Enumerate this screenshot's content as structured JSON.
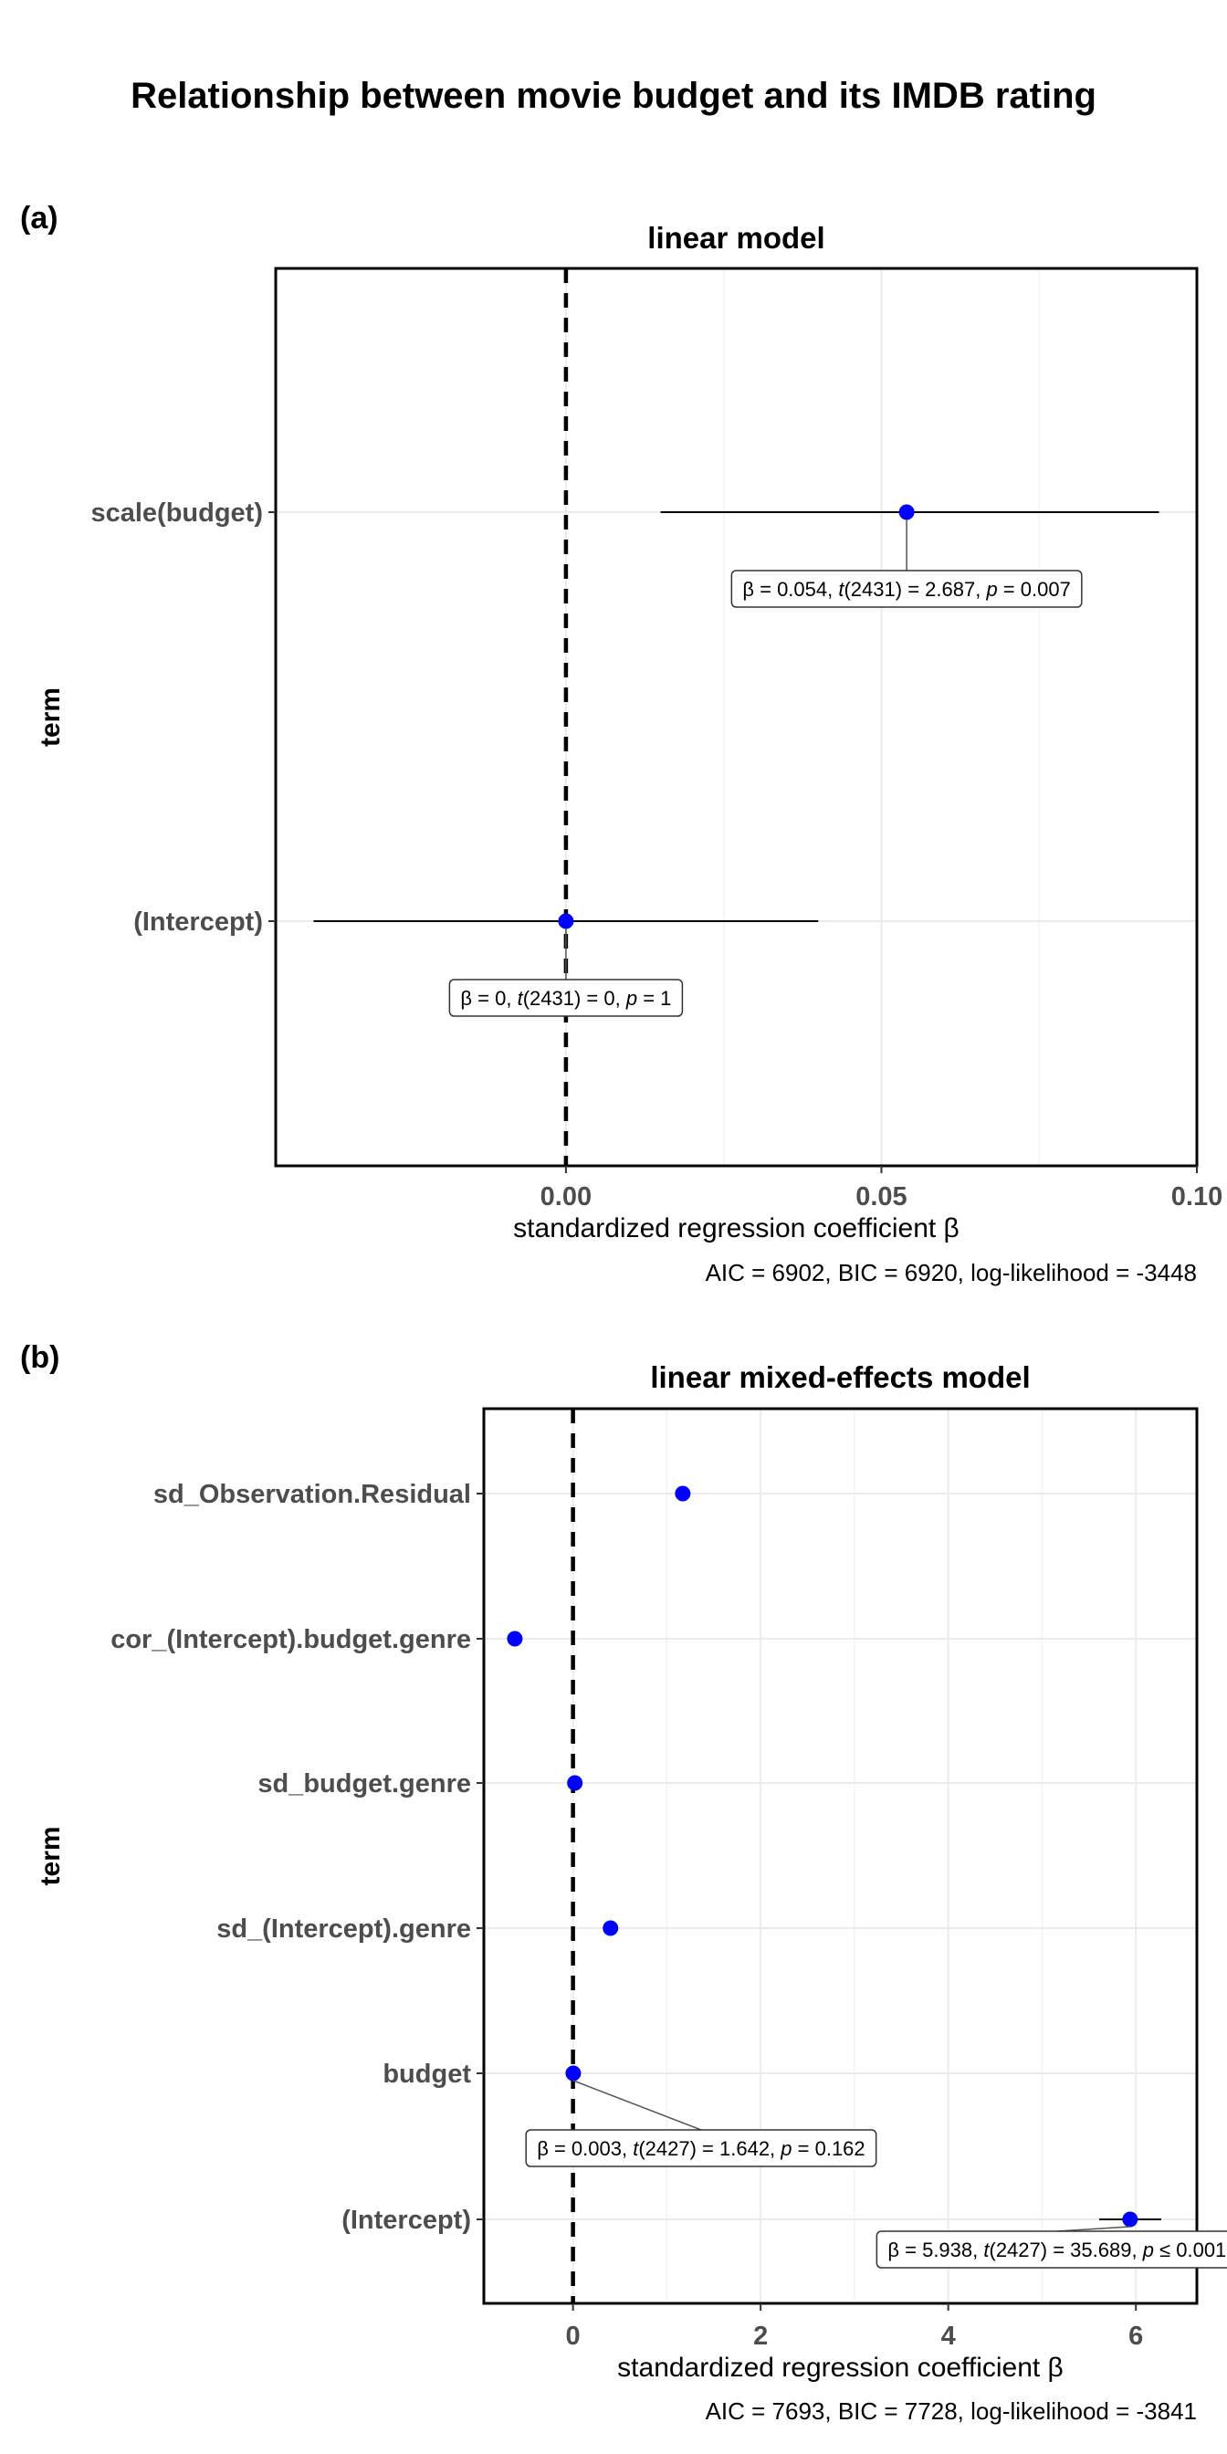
{
  "title": "Relationship between movie budget and its IMDB rating",
  "chart_data": [
    {
      "type": "scatter",
      "panel_tag": "(a)",
      "title": "linear model",
      "xlabel": "standardized regression coefficient β",
      "ylabel": "term",
      "xlim": [
        -0.046,
        0.1
      ],
      "x_ticks": [
        0.0,
        0.05,
        0.1
      ],
      "x_tick_labels": [
        "0.00",
        "0.05",
        "0.10"
      ],
      "reference_line": 0,
      "grid": true,
      "terms": [
        {
          "term": "scale(budget)",
          "estimate": 0.054,
          "ci_low": 0.015,
          "ci_high": 0.094,
          "label": {
            "beta": "0.054",
            "stat": "t",
            "df": "2431",
            "stat_value": "2.687",
            "p_rel": "=",
            "p": "0.007"
          }
        },
        {
          "term": "(Intercept)",
          "estimate": 0.0,
          "ci_low": -0.04,
          "ci_high": 0.04,
          "label": {
            "beta": "0",
            "stat": "t",
            "df": "2431",
            "stat_value": "0",
            "p_rel": "=",
            "p": "1"
          }
        }
      ],
      "caption": "AIC = 6902, BIC = 6920, log-likelihood = -3448",
      "point_color": "#0000FF"
    },
    {
      "type": "scatter",
      "panel_tag": "(b)",
      "title": "linear mixed-effects model",
      "xlabel": "standardized regression coefficient β",
      "ylabel": "term",
      "xlim": [
        -0.95,
        6.65
      ],
      "x_ticks": [
        0,
        2,
        4,
        6
      ],
      "x_tick_labels": [
        "0",
        "2",
        "4",
        "6"
      ],
      "reference_line": 0,
      "grid": true,
      "terms": [
        {
          "term": "sd_Observation.Residual",
          "estimate": 1.17
        },
        {
          "term": "cor_(Intercept).budget.genre",
          "estimate": -0.62
        },
        {
          "term": "sd_budget.genre",
          "estimate": 0.02
        },
        {
          "term": "sd_(Intercept).genre",
          "estimate": 0.4
        },
        {
          "term": "budget",
          "estimate": 0.003,
          "label": {
            "beta": "0.003",
            "stat": "t",
            "df": "2427",
            "stat_value": "1.642",
            "p_rel": "=",
            "p": "0.162"
          }
        },
        {
          "term": "(Intercept)",
          "estimate": 5.938,
          "ci_low": 5.61,
          "ci_high": 6.27,
          "label": {
            "beta": "5.938",
            "stat": "t",
            "df": "2427",
            "stat_value": "35.689",
            "p_rel": "≤",
            "p": "0.001"
          }
        }
      ],
      "caption": "AIC = 7693, BIC = 7728, log-likelihood = -3841",
      "point_color": "#0000FF"
    }
  ]
}
